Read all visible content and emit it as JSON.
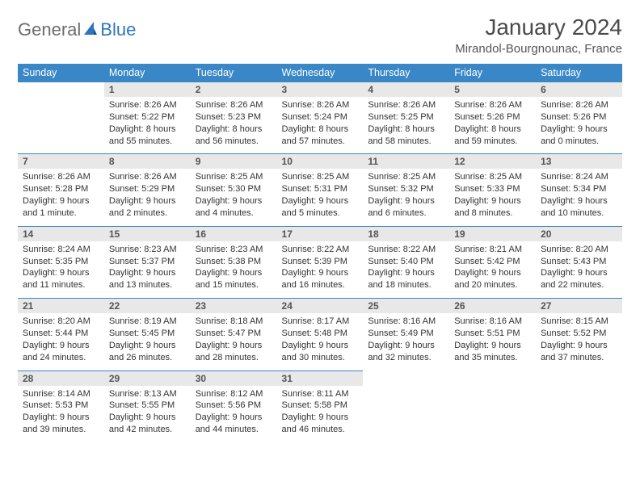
{
  "logo": {
    "text1": "General",
    "text2": "Blue"
  },
  "title": "January 2024",
  "location": "Mirandol-Bourgnounac, France",
  "weekdays": [
    "Sunday",
    "Monday",
    "Tuesday",
    "Wednesday",
    "Thursday",
    "Friday",
    "Saturday"
  ],
  "header_bg": "#3a87c8",
  "daynum_bg": "#e8e8e8",
  "border_color": "#3a87c8",
  "weeks": [
    {
      "nums": [
        "",
        "1",
        "2",
        "3",
        "4",
        "5",
        "6"
      ],
      "cells": [
        "",
        "Sunrise: 8:26 AM\nSunset: 5:22 PM\nDaylight: 8 hours and 55 minutes.",
        "Sunrise: 8:26 AM\nSunset: 5:23 PM\nDaylight: 8 hours and 56 minutes.",
        "Sunrise: 8:26 AM\nSunset: 5:24 PM\nDaylight: 8 hours and 57 minutes.",
        "Sunrise: 8:26 AM\nSunset: 5:25 PM\nDaylight: 8 hours and 58 minutes.",
        "Sunrise: 8:26 AM\nSunset: 5:26 PM\nDaylight: 8 hours and 59 minutes.",
        "Sunrise: 8:26 AM\nSunset: 5:26 PM\nDaylight: 9 hours and 0 minutes."
      ]
    },
    {
      "nums": [
        "7",
        "8",
        "9",
        "10",
        "11",
        "12",
        "13"
      ],
      "cells": [
        "Sunrise: 8:26 AM\nSunset: 5:28 PM\nDaylight: 9 hours and 1 minute.",
        "Sunrise: 8:26 AM\nSunset: 5:29 PM\nDaylight: 9 hours and 2 minutes.",
        "Sunrise: 8:25 AM\nSunset: 5:30 PM\nDaylight: 9 hours and 4 minutes.",
        "Sunrise: 8:25 AM\nSunset: 5:31 PM\nDaylight: 9 hours and 5 minutes.",
        "Sunrise: 8:25 AM\nSunset: 5:32 PM\nDaylight: 9 hours and 6 minutes.",
        "Sunrise: 8:25 AM\nSunset: 5:33 PM\nDaylight: 9 hours and 8 minutes.",
        "Sunrise: 8:24 AM\nSunset: 5:34 PM\nDaylight: 9 hours and 10 minutes."
      ]
    },
    {
      "nums": [
        "14",
        "15",
        "16",
        "17",
        "18",
        "19",
        "20"
      ],
      "cells": [
        "Sunrise: 8:24 AM\nSunset: 5:35 PM\nDaylight: 9 hours and 11 minutes.",
        "Sunrise: 8:23 AM\nSunset: 5:37 PM\nDaylight: 9 hours and 13 minutes.",
        "Sunrise: 8:23 AM\nSunset: 5:38 PM\nDaylight: 9 hours and 15 minutes.",
        "Sunrise: 8:22 AM\nSunset: 5:39 PM\nDaylight: 9 hours and 16 minutes.",
        "Sunrise: 8:22 AM\nSunset: 5:40 PM\nDaylight: 9 hours and 18 minutes.",
        "Sunrise: 8:21 AM\nSunset: 5:42 PM\nDaylight: 9 hours and 20 minutes.",
        "Sunrise: 8:20 AM\nSunset: 5:43 PM\nDaylight: 9 hours and 22 minutes."
      ]
    },
    {
      "nums": [
        "21",
        "22",
        "23",
        "24",
        "25",
        "26",
        "27"
      ],
      "cells": [
        "Sunrise: 8:20 AM\nSunset: 5:44 PM\nDaylight: 9 hours and 24 minutes.",
        "Sunrise: 8:19 AM\nSunset: 5:45 PM\nDaylight: 9 hours and 26 minutes.",
        "Sunrise: 8:18 AM\nSunset: 5:47 PM\nDaylight: 9 hours and 28 minutes.",
        "Sunrise: 8:17 AM\nSunset: 5:48 PM\nDaylight: 9 hours and 30 minutes.",
        "Sunrise: 8:16 AM\nSunset: 5:49 PM\nDaylight: 9 hours and 32 minutes.",
        "Sunrise: 8:16 AM\nSunset: 5:51 PM\nDaylight: 9 hours and 35 minutes.",
        "Sunrise: 8:15 AM\nSunset: 5:52 PM\nDaylight: 9 hours and 37 minutes."
      ]
    },
    {
      "nums": [
        "28",
        "29",
        "30",
        "31",
        "",
        "",
        ""
      ],
      "cells": [
        "Sunrise: 8:14 AM\nSunset: 5:53 PM\nDaylight: 9 hours and 39 minutes.",
        "Sunrise: 8:13 AM\nSunset: 5:55 PM\nDaylight: 9 hours and 42 minutes.",
        "Sunrise: 8:12 AM\nSunset: 5:56 PM\nDaylight: 9 hours and 44 minutes.",
        "Sunrise: 8:11 AM\nSunset: 5:58 PM\nDaylight: 9 hours and 46 minutes.",
        "",
        "",
        ""
      ]
    }
  ]
}
